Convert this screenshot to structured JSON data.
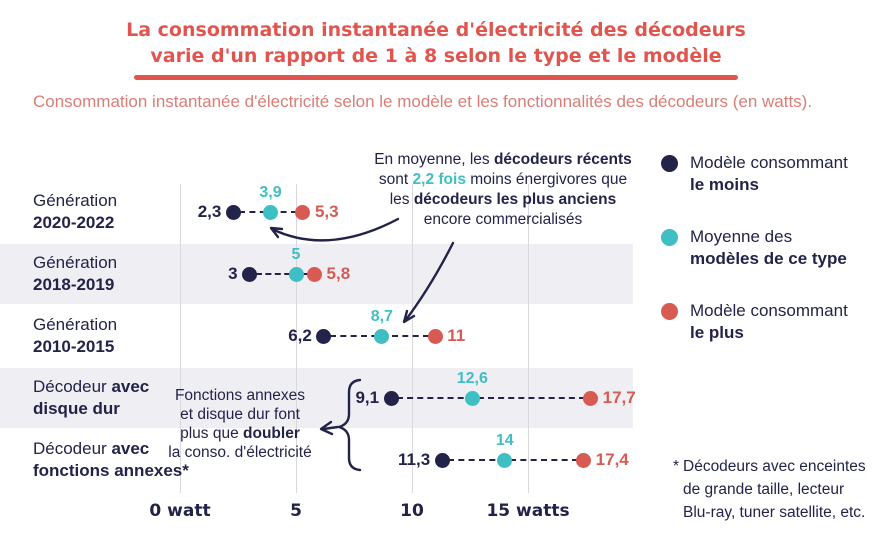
{
  "header": {
    "title_line1": "La consommation instantanée d'électricité des décodeurs",
    "title_line2": "varie d'un rapport de 1 à 8 selon le type et le modèle",
    "subtitle": "Consommation instantanée d'électricité selon le modèle et les fonctionnalités des décodeurs (en watts)."
  },
  "colors": {
    "navy": "#23234a",
    "teal": "#3fbfc3",
    "coral": "#d75b53",
    "title_red": "#e0564f",
    "band_gray": "#efeef3",
    "grid_gray": "#d8d8de"
  },
  "chart_data": {
    "type": "scatter",
    "subtype": "dot-range",
    "unit": "watts",
    "xlim": [
      0,
      18.5
    ],
    "grid": "vertical",
    "axis_ticks": [
      {
        "value": 0,
        "label": "0 watt"
      },
      {
        "value": 5,
        "label": "5"
      },
      {
        "value": 10,
        "label": "10"
      },
      {
        "value": 15,
        "label": "15 watts"
      }
    ],
    "series_meaning": {
      "min": "Modèle consommant le moins",
      "avg": "Moyenne des modèles de ce type",
      "max": "Modèle consommant le plus"
    },
    "rows": [
      {
        "label": [
          [
            {
              "t": "Génération"
            }
          ],
          [
            {
              "t": "2020-2022",
              "b": true
            }
          ]
        ],
        "shaded": false,
        "min": 2.3,
        "avg": 3.9,
        "max": 5.3,
        "min_label": "2,3",
        "avg_label": "3,9",
        "max_label": "5,3"
      },
      {
        "label": [
          [
            {
              "t": "Génération"
            }
          ],
          [
            {
              "t": "2018-2019",
              "b": true
            }
          ]
        ],
        "shaded": true,
        "min": 3,
        "avg": 5,
        "max": 5.8,
        "min_label": "3",
        "avg_label": "5",
        "max_label": "5,8"
      },
      {
        "label": [
          [
            {
              "t": "Génération"
            }
          ],
          [
            {
              "t": "2010-2015",
              "b": true
            }
          ]
        ],
        "shaded": false,
        "min": 6.2,
        "avg": 8.7,
        "max": 11,
        "min_label": "6,2",
        "avg_label": "8,7",
        "max_label": "11"
      },
      {
        "label": [
          [
            {
              "t": "Décodeur "
            },
            {
              "t": "avec",
              "b": true
            }
          ],
          [
            {
              "t": "disque dur",
              "b": true
            }
          ]
        ],
        "shaded": true,
        "min": 9.1,
        "avg": 12.6,
        "max": 17.7,
        "min_label": "9,1",
        "avg_label": "12,6",
        "max_label": "17,7"
      },
      {
        "label": [
          [
            {
              "t": "Décodeur "
            },
            {
              "t": "avec",
              "b": true
            }
          ],
          [
            {
              "t": "fonctions annexes*",
              "b": true
            }
          ]
        ],
        "shaded": false,
        "min": 11.3,
        "avg": 14,
        "max": 17.4,
        "min_label": "11,3",
        "avg_label": "14",
        "max_label": "17,4"
      }
    ]
  },
  "legend": {
    "items": [
      {
        "color": "navy",
        "line1": "Modèle consommant",
        "line2": "le moins"
      },
      {
        "color": "teal",
        "line1": "Moyenne des",
        "line2": "modèles de ce type"
      },
      {
        "color": "coral",
        "line1": "Modèle consommant",
        "line2": "le plus"
      }
    ]
  },
  "annotations": {
    "recent": {
      "lines": [
        [
          {
            "t": "En moyenne, les "
          },
          {
            "t": "décodeurs récents",
            "b": true
          }
        ],
        [
          {
            "t": "sont "
          },
          {
            "t": "2,2 fois",
            "b": true,
            "c": "teal"
          },
          {
            "t": " moins énergivores que"
          }
        ],
        [
          {
            "t": "les "
          },
          {
            "t": "décodeurs les plus anciens",
            "b": true
          }
        ],
        [
          {
            "t": "encore commercialisés"
          }
        ]
      ]
    },
    "features": {
      "lines": [
        [
          {
            "t": "Fonctions annexes"
          }
        ],
        [
          {
            "t": "et disque dur font"
          }
        ],
        [
          {
            "t": "plus que "
          },
          {
            "t": "doubler",
            "b": true
          }
        ],
        [
          {
            "t": "la conso. d'électricité"
          }
        ]
      ]
    }
  },
  "footnote": {
    "marker": "*",
    "lines": [
      "Décodeurs avec enceintes",
      "de grande taille, lecteur",
      "Blu-ray, tuner satellite, etc."
    ]
  }
}
